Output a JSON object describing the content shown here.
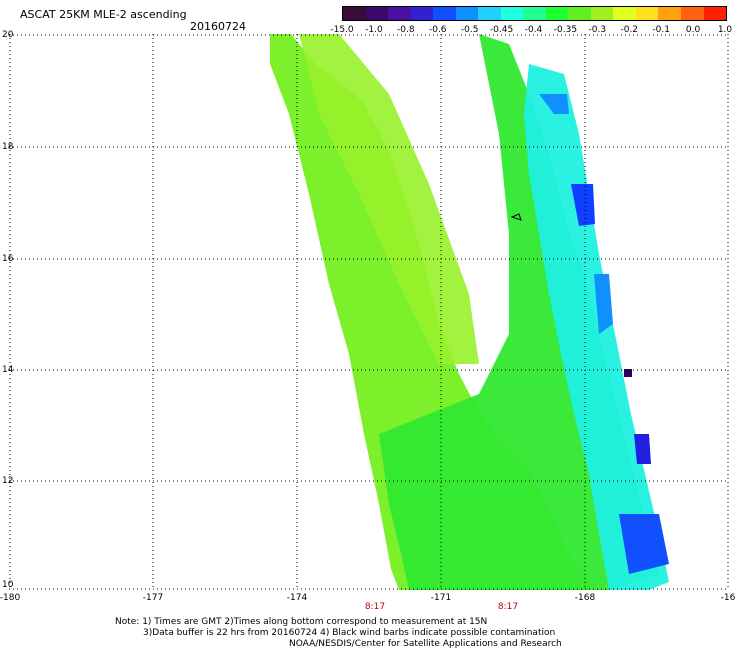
{
  "header": {
    "title": "ASCAT 25KM MLE-2 ascending",
    "date": "20160724"
  },
  "colorbar": {
    "labels": [
      "-15.0",
      "-1.0",
      "-0.8",
      "-0.6",
      "-0.5",
      "-0.45",
      "-0.4",
      "-0.35",
      "-0.3",
      "-0.2",
      "-0.1",
      "0.0",
      "1.0"
    ],
    "colors": [
      "#3a0a3a",
      "#3a0a6a",
      "#4a10a0",
      "#3320d0",
      "#1050ff",
      "#1090ff",
      "#20d0ff",
      "#20ffe0",
      "#20ff90",
      "#20ff30",
      "#60f020",
      "#a0f020",
      "#e0ff20",
      "#ffe020",
      "#ffa010",
      "#ff6010",
      "#ff2000"
    ]
  },
  "axes": {
    "y_labels": [
      "20",
      "18",
      "16",
      "14",
      "12",
      "10"
    ],
    "x_labels": [
      "-180",
      "-177",
      "-174",
      "-171",
      "-168",
      "-16"
    ],
    "time_labels": [
      "8:17",
      "8:17"
    ]
  },
  "notes": {
    "line1": "Note: 1) Times are GMT 2)Times along bottom correspond to measurement at 15N",
    "line2": "3)Data buffer is 22 hrs from 20160724 4) Black wind barbs indicate possible contamination",
    "line3": "NOAA/NESDIS/Center for Satellite Applications and Research"
  },
  "map": {
    "lon_range": [
      -180,
      -165
    ],
    "lat_range": [
      10,
      20
    ],
    "swath": "green"
  }
}
